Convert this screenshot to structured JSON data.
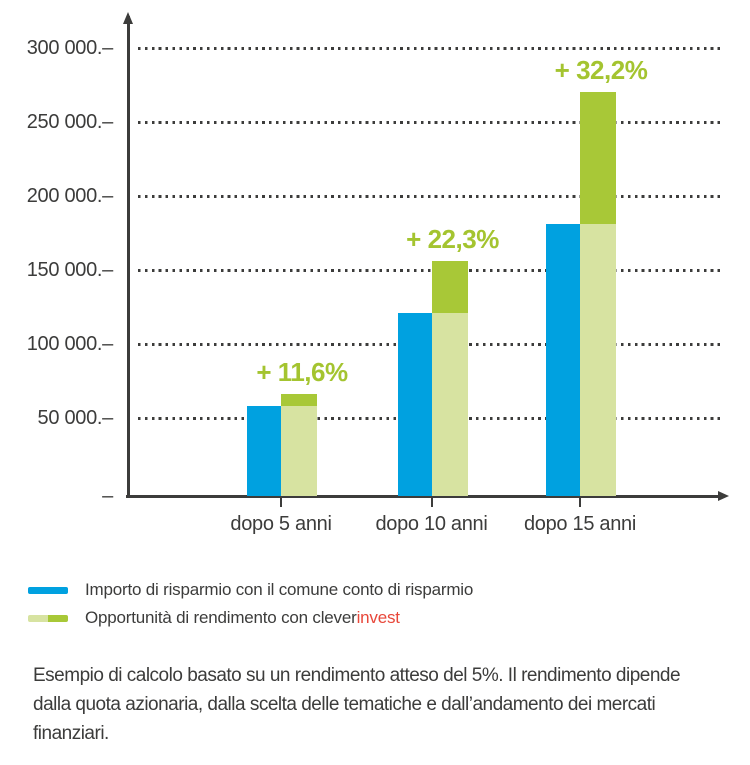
{
  "palette": {
    "axis": "#3c3c3b",
    "text": "#3c3c3b",
    "savings_blue": "#00a1e0",
    "return_green": "#a8c837",
    "return_green_light": "#d7e3a1",
    "pct_label_green": "#a4c430",
    "invest_red": "#e8473a",
    "background": "#ffffff"
  },
  "chart_data": {
    "type": "bar",
    "title": "",
    "categories": [
      "dopo 5 anni",
      "dopo 10 anni",
      "dopo 15 anni"
    ],
    "series": [
      {
        "name": "Importo di risparmio con il comune conto di risparmio",
        "color": "#00a1e0",
        "values": [
          58000,
          121000,
          181000
        ]
      },
      {
        "name": "Opportunità di rendimento con cleverinvest",
        "color_base": "#d7e3a1",
        "color_gain": "#a8c837",
        "values_total": [
          66000,
          156000,
          270000
        ],
        "values_base": [
          58000,
          121000,
          181000
        ]
      }
    ],
    "gain_labels": [
      "+ 11,6%",
      "+ 22,3%",
      "+ 32,2%"
    ],
    "xlabel": "",
    "ylabel": "",
    "ylim": [
      0,
      310000
    ],
    "y_ticks": [
      {
        "label": "300 000.–",
        "value": 300000
      },
      {
        "label": "250 000.–",
        "value": 250000
      },
      {
        "label": "200 000.–",
        "value": 200000
      },
      {
        "label": "150 000.–",
        "value": 150000
      },
      {
        "label": "100 000.–",
        "value": 100000
      },
      {
        "label": "50 000.–",
        "value": 50000
      },
      {
        "label": "–",
        "value": 0
      }
    ],
    "grid": "dotted horizontal, behind bars",
    "legend_position": "below chart, left aligned"
  },
  "legend": {
    "items": [
      {
        "label": "Importo di risparmio con il comune conto di risparmio"
      },
      {
        "label_prefix": "Opportunità di rendimento con clever",
        "label_highlight": "invest"
      }
    ]
  },
  "footer": {
    "lines": [
      "Esempio di calcolo basato su un rendimento atteso del 5%. Il rendimento dipende",
      "dalla quota azionaria, dalla scelta delle tematiche e dall’andamento dei mercati",
      "finanziari."
    ]
  }
}
